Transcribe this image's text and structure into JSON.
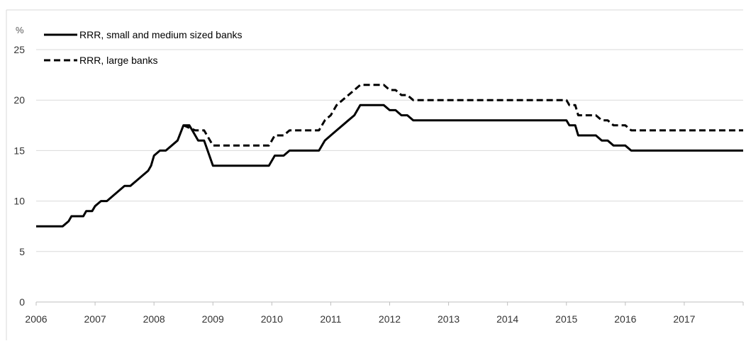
{
  "chart_data": {
    "type": "line",
    "unit_label": "%",
    "ylim": [
      0,
      25
    ],
    "yticks": [
      0,
      5,
      10,
      15,
      20,
      25
    ],
    "xlim": [
      2006,
      2018
    ],
    "xticks": [
      "2006",
      "2007",
      "2008",
      "2009",
      "2010",
      "2011",
      "2012",
      "2013",
      "2014",
      "2015",
      "2016",
      "2017"
    ],
    "grid": "horizontal",
    "legend_position": "top-left",
    "colors": {
      "line": "#000000",
      "grid": "#d9d9d9",
      "axis": "#bfbfbf"
    },
    "series": [
      {
        "name": "RRR, small and medium sized banks",
        "style": "solid",
        "x": [
          2006.0,
          2006.45,
          2006.55,
          2006.6,
          2006.8,
          2006.85,
          2006.95,
          2007.0,
          2007.1,
          2007.2,
          2007.3,
          2007.4,
          2007.5,
          2007.6,
          2007.7,
          2007.8,
          2007.9,
          2007.95,
          2008.0,
          2008.1,
          2008.2,
          2008.3,
          2008.4,
          2008.5,
          2008.6,
          2008.65,
          2008.75,
          2008.85,
          2008.88,
          2009.0,
          2009.5,
          2009.95,
          2010.05,
          2010.2,
          2010.3,
          2010.4,
          2010.5,
          2010.8,
          2010.9,
          2011.0,
          2011.1,
          2011.2,
          2011.3,
          2011.4,
          2011.5,
          2011.6,
          2011.8,
          2011.9,
          2012.0,
          2012.1,
          2012.2,
          2012.3,
          2012.4,
          2012.5,
          2013.0,
          2014.0,
          2015.0,
          2015.05,
          2015.15,
          2015.2,
          2015.3,
          2015.5,
          2015.6,
          2015.7,
          2015.8,
          2016.0,
          2016.1,
          2016.2,
          2017.0,
          2018.0
        ],
        "values": [
          7.5,
          7.5,
          8.0,
          8.5,
          8.5,
          9.0,
          9.0,
          9.5,
          10.0,
          10.0,
          10.5,
          11.0,
          11.5,
          11.5,
          12.0,
          12.5,
          13.0,
          13.5,
          14.5,
          15.0,
          15.0,
          15.5,
          16.0,
          17.5,
          17.5,
          17.0,
          16.0,
          16.0,
          15.5,
          13.5,
          13.5,
          13.5,
          14.5,
          14.5,
          15.0,
          15.0,
          15.0,
          15.0,
          16.0,
          16.5,
          17.0,
          17.5,
          18.0,
          18.5,
          19.5,
          19.5,
          19.5,
          19.5,
          19.0,
          19.0,
          18.5,
          18.5,
          18.0,
          18.0,
          18.0,
          18.0,
          18.0,
          17.5,
          17.5,
          16.5,
          16.5,
          16.5,
          16.0,
          16.0,
          15.5,
          15.5,
          15.0,
          15.0,
          15.0,
          15.0
        ]
      },
      {
        "name": "RRR, large banks",
        "style": "dashed",
        "x": [
          2008.5,
          2008.7,
          2008.85,
          2009.0,
          2009.5,
          2009.95,
          2010.05,
          2010.2,
          2010.3,
          2010.4,
          2010.5,
          2010.8,
          2010.9,
          2011.0,
          2011.1,
          2011.2,
          2011.3,
          2011.4,
          2011.5,
          2011.6,
          2011.8,
          2011.9,
          2012.0,
          2012.1,
          2012.2,
          2012.3,
          2012.4,
          2012.5,
          2013.0,
          2014.0,
          2015.0,
          2015.05,
          2015.15,
          2015.2,
          2015.3,
          2015.5,
          2015.6,
          2015.7,
          2015.8,
          2016.0,
          2016.1,
          2016.2,
          2017.0,
          2018.0
        ],
        "values": [
          17.5,
          17.0,
          17.0,
          15.5,
          15.5,
          15.5,
          16.5,
          16.5,
          17.0,
          17.0,
          17.0,
          17.0,
          18.0,
          18.5,
          19.5,
          20.0,
          20.5,
          21.0,
          21.5,
          21.5,
          21.5,
          21.5,
          21.0,
          21.0,
          20.5,
          20.5,
          20.0,
          20.0,
          20.0,
          20.0,
          20.0,
          19.5,
          19.5,
          18.5,
          18.5,
          18.5,
          18.0,
          18.0,
          17.5,
          17.5,
          17.0,
          17.0,
          17.0,
          17.0
        ]
      }
    ]
  }
}
